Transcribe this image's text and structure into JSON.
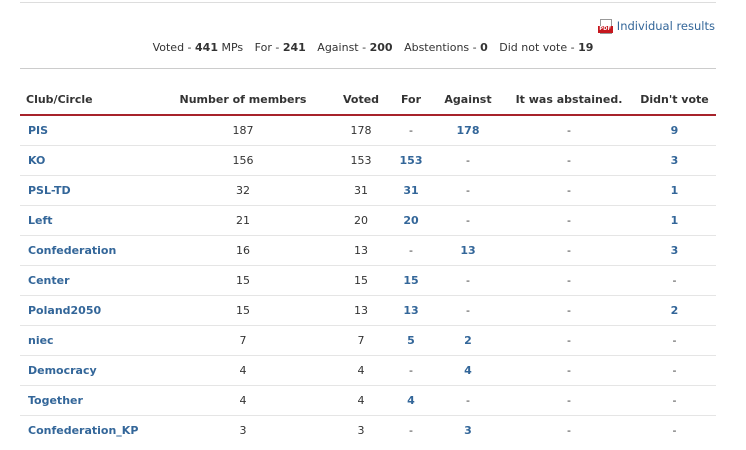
{
  "individual_results": {
    "label": "Individual results",
    "icon": "pdf-icon",
    "icon_text": "PDF"
  },
  "summary": {
    "voted_label": "Voted -",
    "voted_value": "441",
    "voted_unit": "MPs",
    "for_label": "For -",
    "for_value": "241",
    "against_label": "Against -",
    "against_value": "200",
    "abst_label": "Abstentions -",
    "abst_value": "0",
    "dnv_label": "Did not vote -",
    "dnv_value": "19"
  },
  "columns": [
    "Club/Circle",
    "Number of members",
    "Voted",
    "For",
    "Against",
    "It was abstained.",
    "Didn't vote"
  ],
  "rows": [
    {
      "club": "PIS",
      "members": "187",
      "voted": "178",
      "for": "-",
      "against": "178",
      "abstained": "-",
      "didnt": "9"
    },
    {
      "club": "KO",
      "members": "156",
      "voted": "153",
      "for": "153",
      "against": "-",
      "abstained": "-",
      "didnt": "3"
    },
    {
      "club": "PSL-TD",
      "members": "32",
      "voted": "31",
      "for": "31",
      "against": "-",
      "abstained": "-",
      "didnt": "1"
    },
    {
      "club": "Left",
      "members": "21",
      "voted": "20",
      "for": "20",
      "against": "-",
      "abstained": "-",
      "didnt": "1"
    },
    {
      "club": "Confederation",
      "members": "16",
      "voted": "13",
      "for": "-",
      "against": "13",
      "abstained": "-",
      "didnt": "3"
    },
    {
      "club": "Center",
      "members": "15",
      "voted": "15",
      "for": "15",
      "against": "-",
      "abstained": "-",
      "didnt": "-"
    },
    {
      "club": "Poland2050",
      "members": "15",
      "voted": "13",
      "for": "13",
      "against": "-",
      "abstained": "-",
      "didnt": "2"
    },
    {
      "club": "niec",
      "members": "7",
      "voted": "7",
      "for": "5",
      "against": "2",
      "abstained": "-",
      "didnt": "-"
    },
    {
      "club": "Democracy",
      "members": "4",
      "voted": "4",
      "for": "-",
      "against": "4",
      "abstained": "-",
      "didnt": "-"
    },
    {
      "club": "Together",
      "members": "4",
      "voted": "4",
      "for": "4",
      "against": "-",
      "abstained": "-",
      "didnt": "-"
    },
    {
      "club": "Confederation_KP",
      "members": "3",
      "voted": "3",
      "for": "-",
      "against": "3",
      "abstained": "-",
      "didnt": "-"
    }
  ],
  "colors": {
    "link": "#336699",
    "header_rule": "#a7232b",
    "text": "#333333",
    "row_border": "#e5e5e5"
  }
}
